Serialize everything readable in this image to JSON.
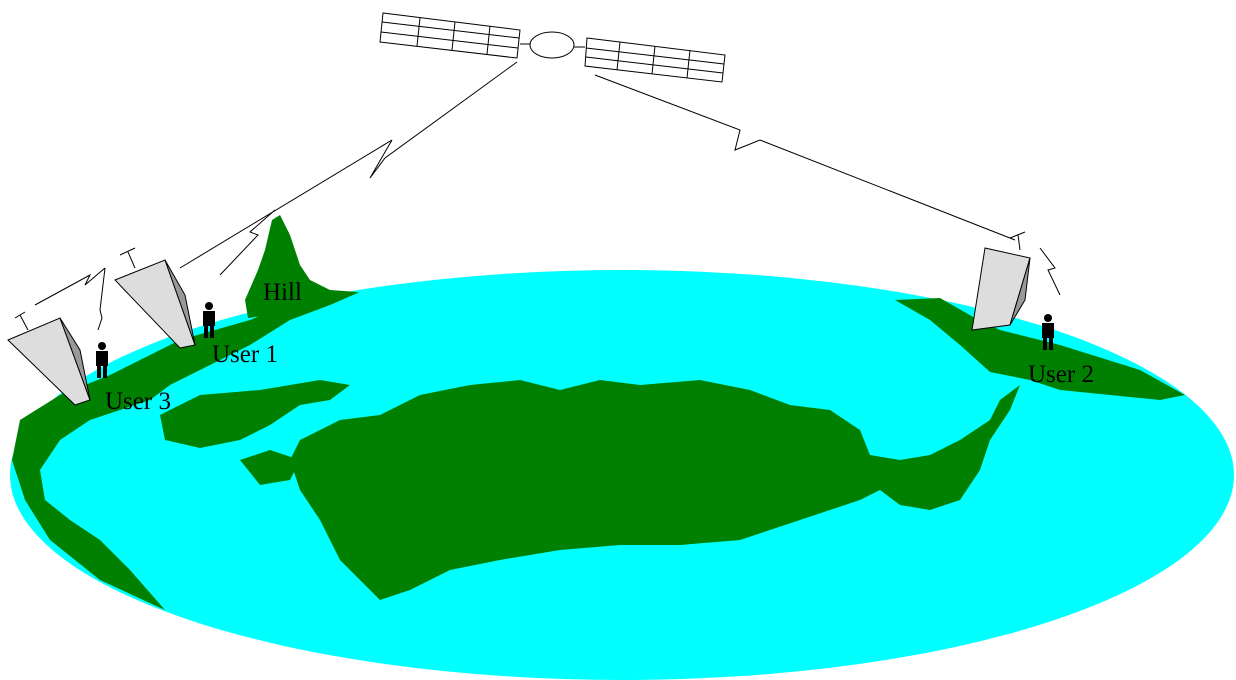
{
  "labels": {
    "hill": "Hill",
    "user1": "User 1",
    "user2": "User 2",
    "user3": "User 3"
  }
}
